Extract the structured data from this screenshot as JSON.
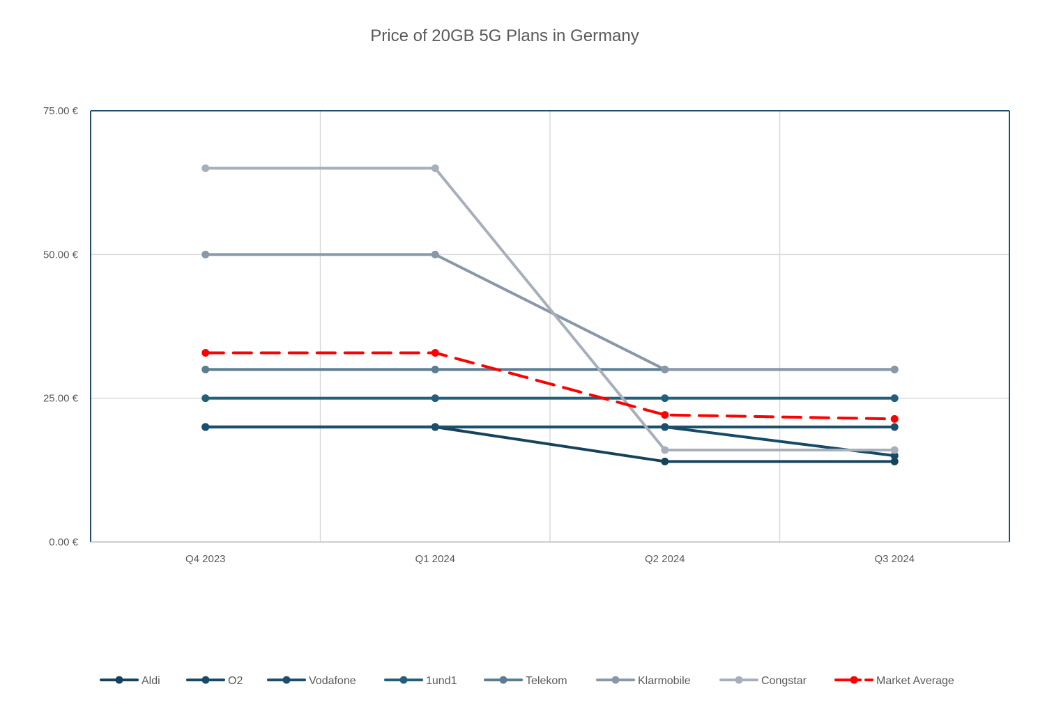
{
  "chart_data": {
    "type": "line",
    "title": "Price of 20GB 5G Plans in Germany",
    "xlabel": "",
    "ylabel": "",
    "categories": [
      "Q4 2023",
      "Q1 2024",
      "Q2 2024",
      "Q3 2024"
    ],
    "ylim": [
      0,
      75
    ],
    "yticks": [
      0,
      25,
      50,
      75
    ],
    "ytick_labels": [
      "0.00 €",
      "25.00 €",
      "50.00 €",
      "75.00 €"
    ],
    "grid": true,
    "legend_position": "bottom",
    "series": [
      {
        "name": "Aldi",
        "values": [
          20,
          20,
          14,
          14
        ],
        "color": "#17425c",
        "dashed": false
      },
      {
        "name": "O2",
        "values": [
          20,
          20,
          20,
          15
        ],
        "color": "#164a66",
        "dashed": false
      },
      {
        "name": "Vodafone",
        "values": [
          20,
          20,
          20,
          20
        ],
        "color": "#1b4f6b",
        "dashed": false
      },
      {
        "name": "1und1",
        "values": [
          25,
          25,
          25,
          25
        ],
        "color": "#235e7a",
        "dashed": false
      },
      {
        "name": "Telekom",
        "values": [
          30,
          30,
          30,
          30
        ],
        "color": "#5a7d94",
        "dashed": false
      },
      {
        "name": "Klarmobile",
        "values": [
          50,
          50,
          30,
          30
        ],
        "color": "#8898a8",
        "dashed": false
      },
      {
        "name": "Congstar",
        "values": [
          65,
          65,
          16,
          16
        ],
        "color": "#a7b0ba",
        "dashed": false
      },
      {
        "name": "Market Average",
        "values": [
          32.9,
          32.9,
          22.1,
          21.4
        ],
        "color": "#ff0000",
        "dashed": true
      }
    ]
  }
}
